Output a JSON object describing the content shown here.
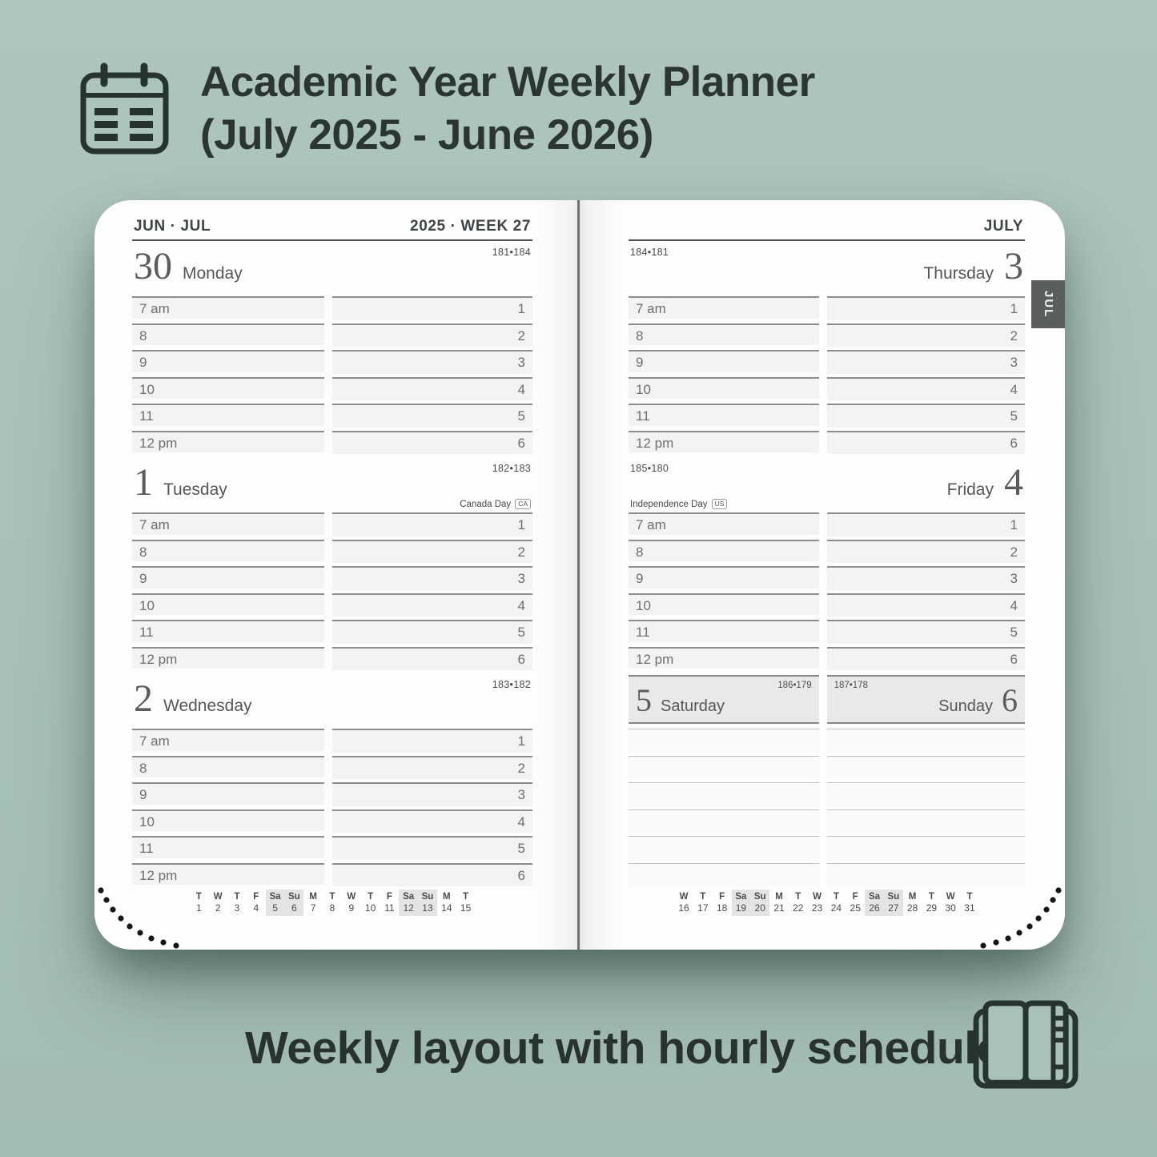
{
  "header": {
    "title_line1": "Academic Year Weekly Planner",
    "title_line2": "(July 2025 - June 2026)"
  },
  "caption": "Weekly layout with hourly schedule",
  "tab_label": "JUL",
  "hours": [
    "7 am",
    "8",
    "9",
    "10",
    "11",
    "12 pm"
  ],
  "slots": [
    "1",
    "2",
    "3",
    "4",
    "5",
    "6"
  ],
  "left_page": {
    "month_label": "JUN · JUL",
    "week_label": "2025 · WEEK 27",
    "days": [
      {
        "number": "30",
        "name": "Monday",
        "pair": "181•184"
      },
      {
        "number": "1",
        "name": "Tuesday",
        "pair": "182•183",
        "holiday": "Canada Day",
        "holiday_badge": "CA"
      },
      {
        "number": "2",
        "name": "Wednesday",
        "pair": "183•182"
      }
    ],
    "strip": {
      "cols": [
        {
          "l": "T",
          "n": "1",
          "w": false
        },
        {
          "l": "W",
          "n": "2",
          "w": false
        },
        {
          "l": "T",
          "n": "3",
          "w": false
        },
        {
          "l": "F",
          "n": "4",
          "w": false
        },
        {
          "l": "Sa",
          "n": "5",
          "w": true
        },
        {
          "l": "Su",
          "n": "6",
          "w": true
        },
        {
          "l": "M",
          "n": "7",
          "w": false
        },
        {
          "l": "T",
          "n": "8",
          "w": false
        },
        {
          "l": "W",
          "n": "9",
          "w": false
        },
        {
          "l": "T",
          "n": "10",
          "w": false
        },
        {
          "l": "F",
          "n": "11",
          "w": false
        },
        {
          "l": "Sa",
          "n": "12",
          "w": true
        },
        {
          "l": "Su",
          "n": "13",
          "w": true
        },
        {
          "l": "M",
          "n": "14",
          "w": false
        },
        {
          "l": "T",
          "n": "15",
          "w": false
        }
      ]
    }
  },
  "right_page": {
    "month_label": "JULY",
    "days": [
      {
        "number": "3",
        "name": "Thursday",
        "pair": "184•181"
      },
      {
        "number": "4",
        "name": "Friday",
        "pair": "185•180",
        "holiday": "Independence Day",
        "holiday_badge": "US"
      }
    ],
    "saturday": {
      "number": "5",
      "name": "Saturday",
      "pair": "186•179"
    },
    "sunday": {
      "number": "6",
      "name": "Sunday",
      "pair": "187•178"
    },
    "strip": {
      "cols": [
        {
          "l": "W",
          "n": "16",
          "w": false
        },
        {
          "l": "T",
          "n": "17",
          "w": false
        },
        {
          "l": "F",
          "n": "18",
          "w": false
        },
        {
          "l": "Sa",
          "n": "19",
          "w": true
        },
        {
          "l": "Su",
          "n": "20",
          "w": true
        },
        {
          "l": "M",
          "n": "21",
          "w": false
        },
        {
          "l": "T",
          "n": "22",
          "w": false
        },
        {
          "l": "W",
          "n": "23",
          "w": false
        },
        {
          "l": "T",
          "n": "24",
          "w": false
        },
        {
          "l": "F",
          "n": "25",
          "w": false
        },
        {
          "l": "Sa",
          "n": "26",
          "w": true
        },
        {
          "l": "Su",
          "n": "27",
          "w": true
        },
        {
          "l": "M",
          "n": "28",
          "w": false
        },
        {
          "l": "T",
          "n": "29",
          "w": false
        },
        {
          "l": "W",
          "n": "30",
          "w": false
        },
        {
          "l": "T",
          "n": "31",
          "w": false
        }
      ]
    }
  },
  "colors": {
    "background": "#a9c1b9",
    "ink": "#2b3633",
    "page": "#fdfdfd",
    "row_fill": "#f3f3f3",
    "row_border": "#8d8d8d",
    "weekend_panel": "#e9e9e9",
    "strip_highlight": "#e4e4e4",
    "tab_bg": "#5a5f5c",
    "tab_text": "#f3f3f3"
  }
}
